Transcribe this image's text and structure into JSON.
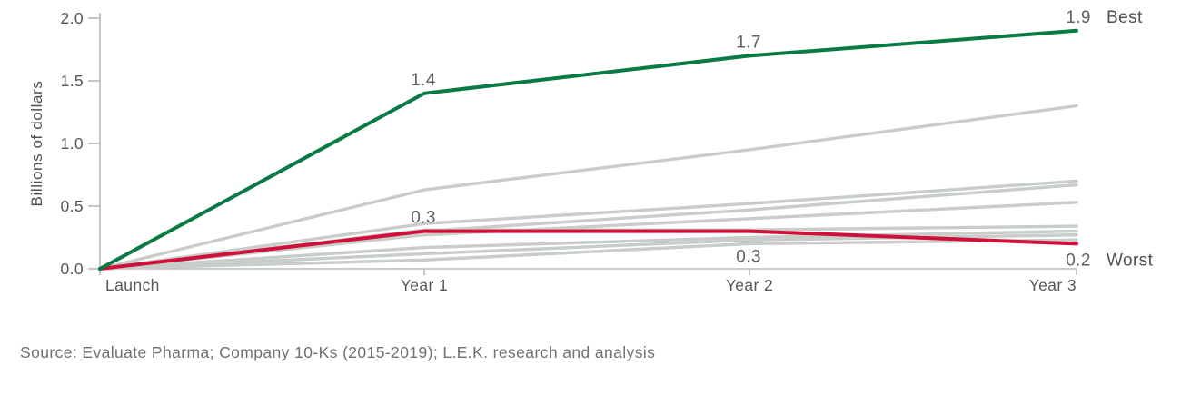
{
  "chart_data": {
    "type": "line",
    "title": "",
    "categories": [
      "Launch",
      "Year 1",
      "Year 2",
      "Year 3"
    ],
    "xlabel": "",
    "ylabel": "Billions of dollars",
    "ylim": [
      0,
      2.0
    ],
    "yticks": [
      0.0,
      0.5,
      1.0,
      1.5,
      2.0
    ],
    "grid": false,
    "legend_position": "end-labels",
    "colors": {
      "best": "#0a7a44",
      "worst": "#d0103a",
      "other": "#c8cdc9",
      "axis": "#b4b9b7",
      "tick_text": "#54575b",
      "annotation_text": "#5d6165",
      "end_label_text": "#4d5054"
    },
    "series": [
      {
        "name": "Best",
        "role": "best",
        "color": "#0a7a44",
        "values": [
          0,
          1.4,
          1.7,
          1.9
        ],
        "point_labels": [
          "",
          "1.4",
          "1.7",
          "1.9"
        ],
        "point_label_positions": [
          "",
          "above",
          "above",
          "above"
        ],
        "end_label": "Best"
      },
      {
        "name": "Worst",
        "role": "worst",
        "color": "#d0103a",
        "values": [
          0,
          0.3,
          0.3,
          0.2
        ],
        "point_labels": [
          "",
          "0.3",
          "0.3",
          "0.2"
        ],
        "point_label_positions": [
          "",
          "above",
          "below-far",
          "below"
        ],
        "end_label": "Worst"
      },
      {
        "name": "other-1",
        "role": "other",
        "color": "#c8cdc9",
        "values": [
          0,
          0.63,
          0.95,
          1.3
        ]
      },
      {
        "name": "other-2",
        "role": "other",
        "color": "#c8cdc9",
        "values": [
          0,
          0.36,
          0.52,
          0.7
        ]
      },
      {
        "name": "other-3",
        "role": "other",
        "color": "#c8cdc9",
        "values": [
          0,
          0.3,
          0.47,
          0.67
        ]
      },
      {
        "name": "other-4",
        "role": "other",
        "color": "#c8cdc9",
        "values": [
          0,
          0.27,
          0.4,
          0.53
        ]
      },
      {
        "name": "other-5",
        "role": "other",
        "color": "#c8cdc9",
        "values": [
          0,
          0.31,
          0.31,
          0.34
        ]
      },
      {
        "name": "other-6",
        "role": "other",
        "color": "#c8cdc9",
        "values": [
          0,
          0.17,
          0.25,
          0.3
        ]
      },
      {
        "name": "other-7",
        "role": "other",
        "color": "#c8cdc9",
        "values": [
          0,
          0.12,
          0.23,
          0.27
        ]
      },
      {
        "name": "other-8",
        "role": "other",
        "color": "#c8cdc9",
        "values": [
          0,
          0.07,
          0.2,
          0.23
        ]
      }
    ]
  },
  "source": {
    "text": "Source: Evaluate Pharma; Company 10-Ks (2015-2019); L.E.K. research and analysis"
  }
}
